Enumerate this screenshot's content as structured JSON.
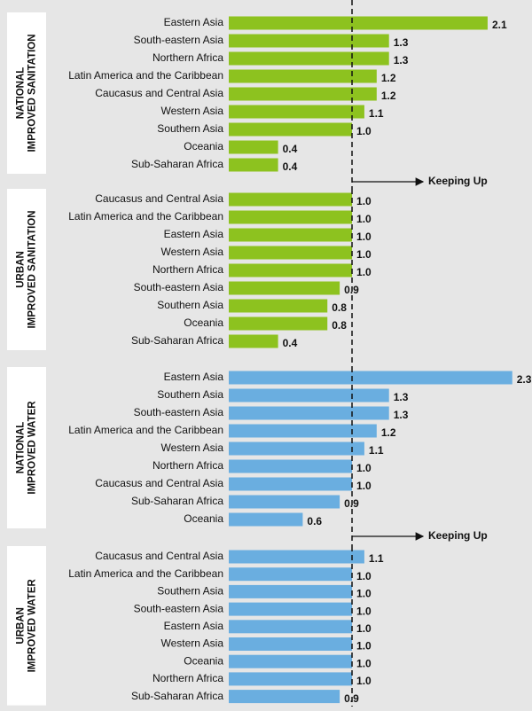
{
  "chart_data": [
    {
      "type": "bar",
      "orientation": "horizontal",
      "label_lines": [
        "NATIONAL",
        "IMPROVED SANITATION"
      ],
      "categories": [
        "Eastern Asia",
        "South-eastern Asia",
        "Northern Africa",
        "Latin America and the Caribbean",
        "Caucasus and Central Asia",
        "Western Asia",
        "Southern Asia",
        "Oceania",
        "Sub-Saharan Africa"
      ],
      "values": [
        2.1,
        1.3,
        1.3,
        1.2,
        1.2,
        1.1,
        1.0,
        0.4,
        0.4
      ],
      "value_labels": [
        "2.1",
        "1.3",
        "1.3",
        "1.2",
        "1.2",
        "1.1",
        "1.0",
        "0.4",
        "0.4"
      ],
      "color": "#8dc21f",
      "xlim": [
        0,
        2.46
      ],
      "reference_line": 1.0,
      "annotation": "Keeping Up"
    },
    {
      "type": "bar",
      "orientation": "horizontal",
      "label_lines": [
        "URBAN",
        "IMPROVED SANITATION"
      ],
      "categories": [
        "Caucasus and Central Asia",
        "Latin America and the Caribbean",
        "Eastern Asia",
        "Western Asia",
        "Northern Africa",
        "South-eastern Asia",
        "Southern Asia",
        "Oceania",
        "Sub-Saharan Africa"
      ],
      "values": [
        1.0,
        1.0,
        1.0,
        1.0,
        1.0,
        0.9,
        0.8,
        0.8,
        0.4
      ],
      "value_labels": [
        "1.0",
        "1.0",
        "1.0",
        "1.0",
        "1.0",
        "0.9",
        "0.8",
        "0.8",
        "0.4"
      ],
      "color": "#8dc21f",
      "xlim": [
        0,
        2.46
      ],
      "reference_line": 1.0
    },
    {
      "type": "bar",
      "orientation": "horizontal",
      "label_lines": [
        "NATIONAL",
        "IMPROVED WATER"
      ],
      "categories": [
        "Eastern Asia",
        "Southern Asia",
        "South-eastern Asia",
        "Latin America and the Caribbean",
        "Western Asia",
        "Northern Africa",
        "Caucasus and Central Asia",
        "Sub-Saharan Africa",
        "Oceania"
      ],
      "values": [
        2.3,
        1.3,
        1.3,
        1.2,
        1.1,
        1.0,
        1.0,
        0.9,
        0.6
      ],
      "value_labels": [
        "2.3",
        "1.3",
        "1.3",
        "1.2",
        "1.1",
        "1.0",
        "1.0",
        "0.9",
        "0.6"
      ],
      "color": "#6aaee0",
      "xlim": [
        0,
        2.46
      ],
      "reference_line": 1.0,
      "annotation": "Keeping Up"
    },
    {
      "type": "bar",
      "orientation": "horizontal",
      "label_lines": [
        "URBAN",
        "IMPROVED WATER"
      ],
      "categories": [
        "Caucasus and Central Asia",
        "Latin America and the Caribbean",
        "Southern Asia",
        "South-eastern Asia",
        "Eastern Asia",
        "Western Asia",
        "Oceania",
        "Northern Africa",
        "Sub-Saharan Africa"
      ],
      "values": [
        1.1,
        1.0,
        1.0,
        1.0,
        1.0,
        1.0,
        1.0,
        1.0,
        0.9
      ],
      "value_labels": [
        "1.1",
        "1.0",
        "1.0",
        "1.0",
        "1.0",
        "1.0",
        "1.0",
        "1.0",
        "0.9"
      ],
      "color": "#6aaee0",
      "xlim": [
        0,
        2.46
      ],
      "reference_line": 1.0
    }
  ]
}
